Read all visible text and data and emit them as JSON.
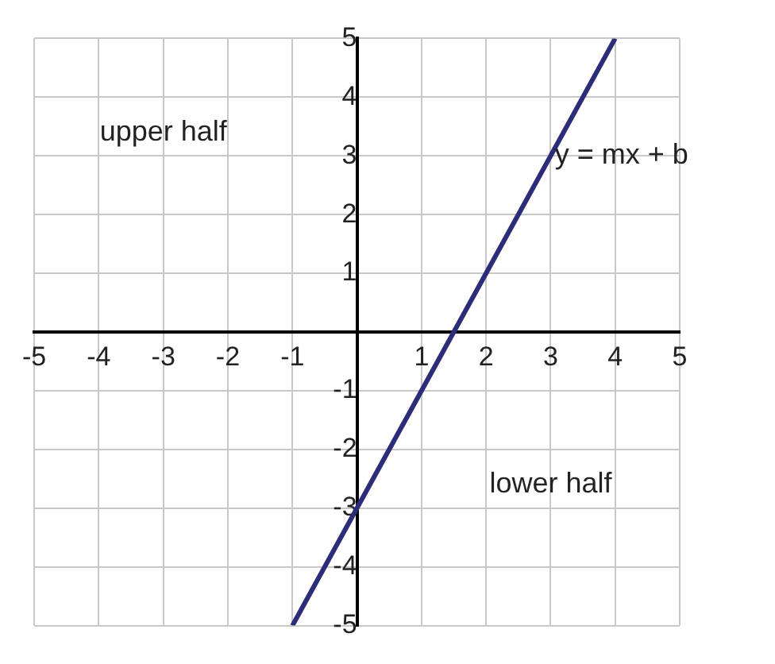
{
  "chart_data": {
    "type": "line",
    "x": [
      -1,
      4
    ],
    "series": [
      {
        "color": "#2b2d7c",
        "values": [
          -5,
          5
        ]
      }
    ],
    "xlim": [
      -5,
      5
    ],
    "ylim": [
      -5,
      5
    ],
    "xticks": [
      -5,
      -4,
      -3,
      -2,
      -1,
      {
        "value": 0,
        "label": null
      },
      1,
      2,
      3,
      4,
      5
    ],
    "yticks": [
      -5,
      -4,
      -3,
      -2,
      -1,
      {
        "value": 0,
        "label": null
      },
      1,
      2,
      3,
      4,
      5
    ],
    "grid": true,
    "legend": false,
    "marker": "none",
    "line_style": "solid",
    "annotations": [
      "upper half",
      "lower half",
      "y = mx + b"
    ]
  }
}
